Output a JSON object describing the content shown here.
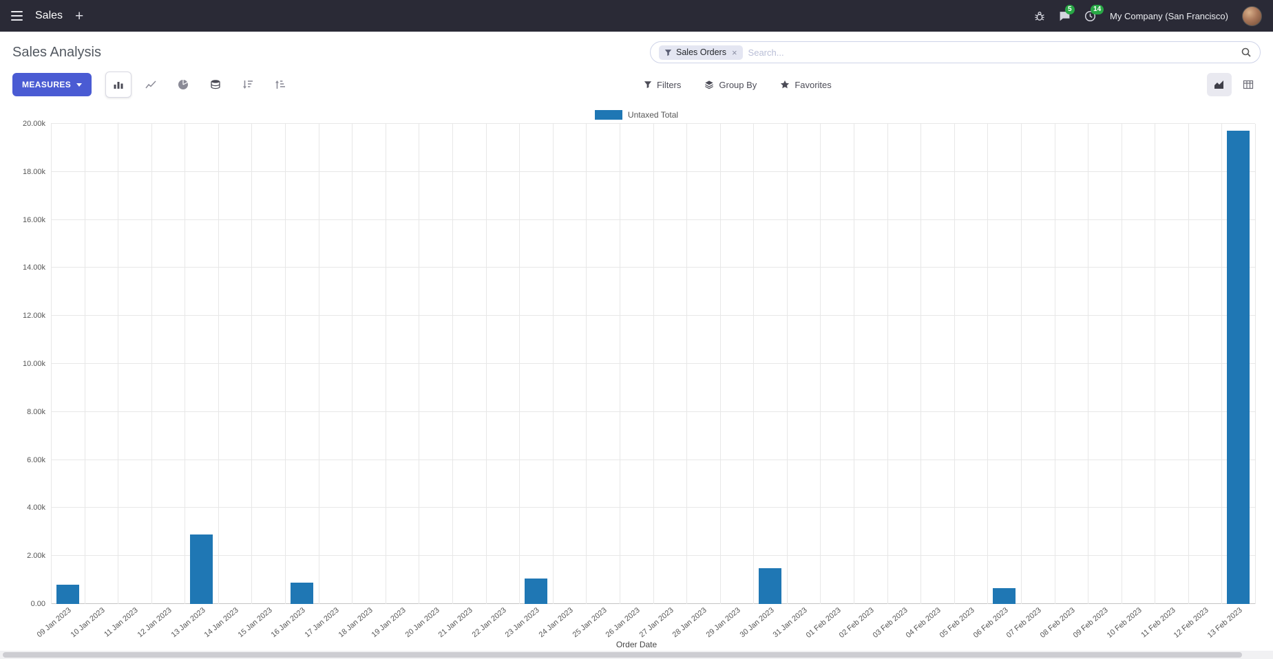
{
  "colors": {
    "navbar_bg": "#2a2a36",
    "accent": "#4a5bd3",
    "bar": "#1f77b4",
    "badge_green": "#28a745"
  },
  "navbar": {
    "app_name": "Sales",
    "company": "My Company (San Francisco)",
    "chat_badge": "5",
    "activity_badge": "14"
  },
  "control_panel": {
    "title": "Sales Analysis",
    "search": {
      "facet_label": "Sales Orders",
      "placeholder": "Search...",
      "facet_remove": "×"
    },
    "measures_label": "MEASURES",
    "filters_label": "Filters",
    "group_by_label": "Group By",
    "favorites_label": "Favorites"
  },
  "chart_data": {
    "type": "bar",
    "title": "",
    "xlabel": "Order Date",
    "ylabel": "",
    "ylim": [
      0,
      20000
    ],
    "y_tick_labels": [
      "0.00",
      "2.00k",
      "4.00k",
      "6.00k",
      "8.00k",
      "10.00k",
      "12.00k",
      "14.00k",
      "16.00k",
      "18.00k",
      "20.00k"
    ],
    "legend_position": "top",
    "grid": true,
    "categories": [
      "09 Jan 2023",
      "10 Jan 2023",
      "11 Jan 2023",
      "12 Jan 2023",
      "13 Jan 2023",
      "14 Jan 2023",
      "15 Jan 2023",
      "16 Jan 2023",
      "17 Jan 2023",
      "18 Jan 2023",
      "19 Jan 2023",
      "20 Jan 2023",
      "21 Jan 2023",
      "22 Jan 2023",
      "23 Jan 2023",
      "24 Jan 2023",
      "25 Jan 2023",
      "26 Jan 2023",
      "27 Jan 2023",
      "28 Jan 2023",
      "29 Jan 2023",
      "30 Jan 2023",
      "31 Jan 2023",
      "01 Feb 2023",
      "02 Feb 2023",
      "03 Feb 2023",
      "04 Feb 2023",
      "05 Feb 2023",
      "06 Feb 2023",
      "07 Feb 2023",
      "08 Feb 2023",
      "09 Feb 2023",
      "10 Feb 2023",
      "11 Feb 2023",
      "12 Feb 2023",
      "13 Feb 2023"
    ],
    "series": [
      {
        "name": "Untaxed Total",
        "color": "#1f77b4",
        "values": [
          800,
          0,
          0,
          0,
          2900,
          0,
          0,
          900,
          0,
          0,
          0,
          0,
          0,
          0,
          1050,
          0,
          0,
          0,
          0,
          0,
          0,
          1500,
          0,
          0,
          0,
          0,
          0,
          0,
          650,
          0,
          0,
          0,
          0,
          0,
          0,
          19700
        ]
      }
    ]
  }
}
